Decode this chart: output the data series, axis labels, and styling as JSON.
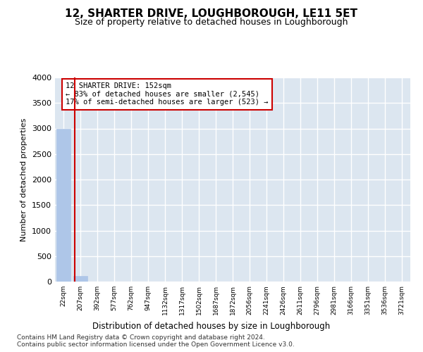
{
  "title": "12, SHARTER DRIVE, LOUGHBOROUGH, LE11 5ET",
  "subtitle": "Size of property relative to detached houses in Loughborough",
  "xlabel": "Distribution of detached houses by size in Loughborough",
  "ylabel": "Number of detached properties",
  "bin_labels": [
    "22sqm",
    "207sqm",
    "392sqm",
    "577sqm",
    "762sqm",
    "947sqm",
    "1132sqm",
    "1317sqm",
    "1502sqm",
    "1687sqm",
    "1872sqm",
    "2056sqm",
    "2241sqm",
    "2426sqm",
    "2611sqm",
    "2796sqm",
    "2981sqm",
    "3166sqm",
    "3351sqm",
    "3536sqm",
    "3721sqm"
  ],
  "bar_values": [
    3000,
    110,
    0,
    0,
    0,
    0,
    0,
    0,
    0,
    0,
    0,
    0,
    0,
    0,
    0,
    0,
    0,
    0,
    0,
    0,
    0
  ],
  "bar_color": "#aec6e8",
  "bar_edge_color": "#aec6e8",
  "background_color": "#dce6f0",
  "grid_color": "#ffffff",
  "vline_x": 0.68,
  "vline_color": "#cc0000",
  "ylim": [
    0,
    4000
  ],
  "yticks": [
    0,
    500,
    1000,
    1500,
    2000,
    2500,
    3000,
    3500,
    4000
  ],
  "annotation_line1": "12 SHARTER DRIVE: 152sqm",
  "annotation_line2": "← 83% of detached houses are smaller (2,545)",
  "annotation_line3": "17% of semi-detached houses are larger (523) →",
  "annotation_box_color": "#ffffff",
  "annotation_box_edge": "#cc0000",
  "footer_text": "Contains HM Land Registry data © Crown copyright and database right 2024.\nContains public sector information licensed under the Open Government Licence v3.0.",
  "title_fontsize": 11,
  "subtitle_fontsize": 9,
  "annotation_fontsize": 7.5,
  "footer_fontsize": 6.5,
  "ylabel_fontsize": 8,
  "xlabel_fontsize": 8.5,
  "xtick_fontsize": 6.5,
  "ytick_fontsize": 8
}
